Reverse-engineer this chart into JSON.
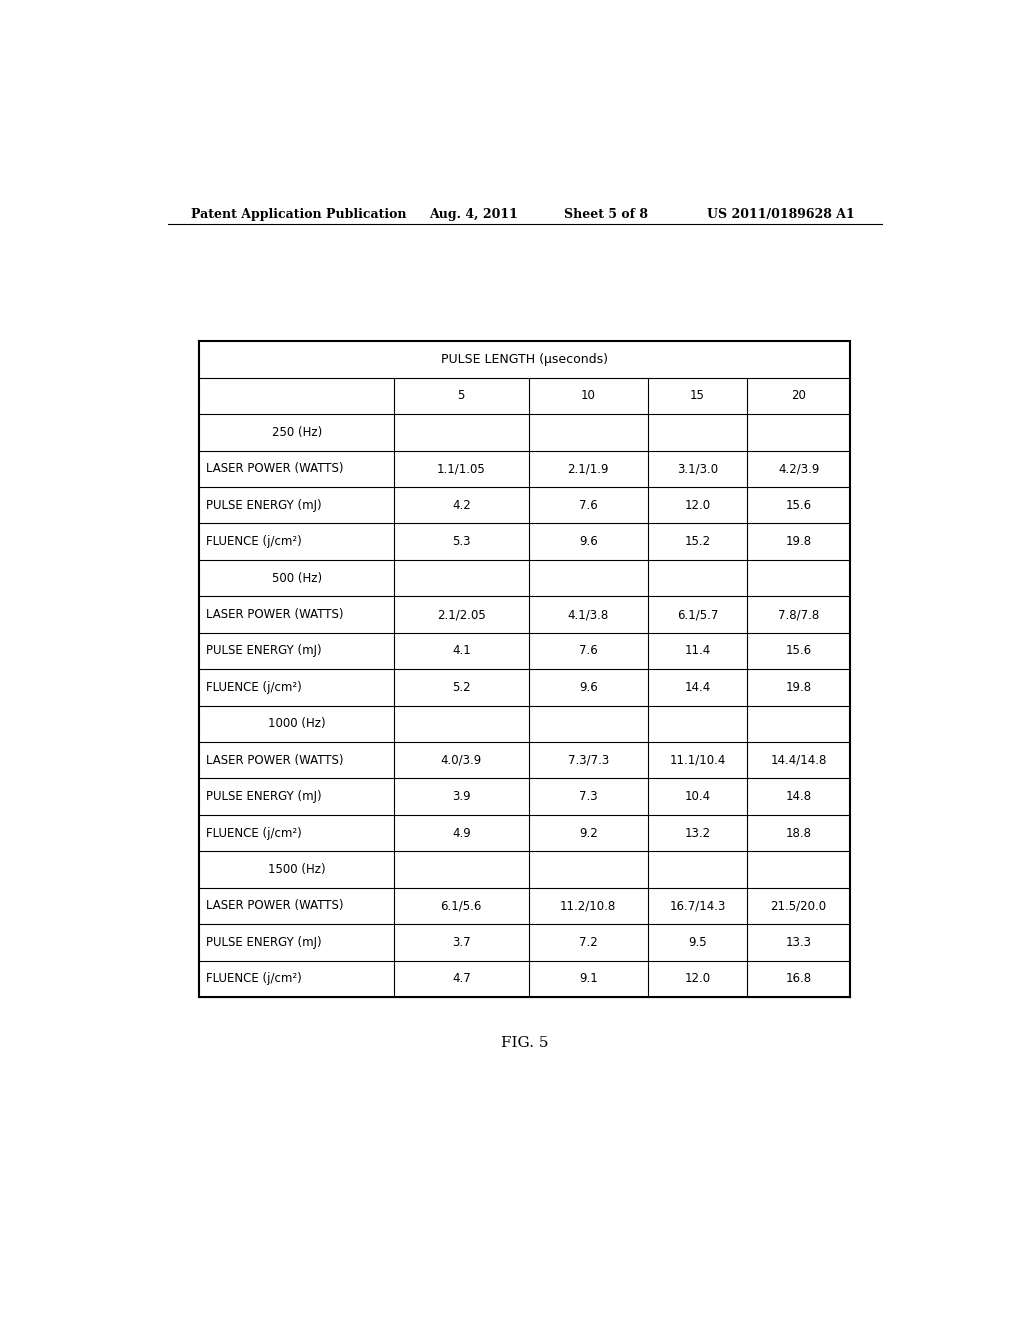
{
  "header_text": "Patent Application Publication",
  "header_date": "Aug. 4, 2011",
  "header_sheet": "Sheet 5 of 8",
  "header_patent": "US 2011/0189628 A1",
  "fig_label": "FIG. 5",
  "table_title": "PULSE LENGTH (μseconds)",
  "col_headers": [
    "",
    "5",
    "10",
    "15",
    "20"
  ],
  "sections": [
    {
      "freq_label": "250 (Hz)",
      "rows": [
        [
          "LASER POWER (WATTS)",
          "1.1/1.05",
          "2.1/1.9",
          "3.1/3.0",
          "4.2/3.9"
        ],
        [
          "PULSE ENERGY (mJ)",
          "4.2",
          "7.6",
          "12.0",
          "15.6"
        ],
        [
          "FLUENCE (j/cm²)",
          "5.3",
          "9.6",
          "15.2",
          "19.8"
        ]
      ]
    },
    {
      "freq_label": "500 (Hz)",
      "rows": [
        [
          "LASER POWER (WATTS)",
          "2.1/2.05",
          "4.1/3.8",
          "6.1/5.7",
          "7.8/7.8"
        ],
        [
          "PULSE ENERGY (mJ)",
          "4.1",
          "7.6",
          "11.4",
          "15.6"
        ],
        [
          "FLUENCE (j/cm²)",
          "5.2",
          "9.6",
          "14.4",
          "19.8"
        ]
      ]
    },
    {
      "freq_label": "1000 (Hz)",
      "rows": [
        [
          "LASER POWER (WATTS)",
          "4.0/3.9",
          "7.3/7.3",
          "11.1/10.4",
          "14.4/14.8"
        ],
        [
          "PULSE ENERGY (mJ)",
          "3.9",
          "7.3",
          "10.4",
          "14.8"
        ],
        [
          "FLUENCE (j/cm²)",
          "4.9",
          "9.2",
          "13.2",
          "18.8"
        ]
      ]
    },
    {
      "freq_label": "1500 (Hz)",
      "rows": [
        [
          "LASER POWER (WATTS)",
          "6.1/5.6",
          "11.2/10.8",
          "16.7/14.3",
          "21.5/20.0"
        ],
        [
          "PULSE ENERGY (mJ)",
          "3.7",
          "7.2",
          "9.5",
          "13.3"
        ],
        [
          "FLUENCE (j/cm²)",
          "4.7",
          "9.1",
          "12.0",
          "16.8"
        ]
      ]
    }
  ],
  "bg_color": "#ffffff",
  "line_color": "#000000",
  "text_color": "#000000",
  "font_size_header": 9,
  "font_size_table": 8.5,
  "font_size_title": 9
}
